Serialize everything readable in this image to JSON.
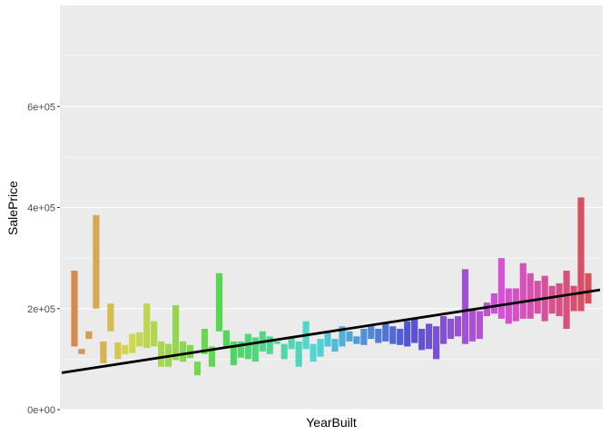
{
  "chart_data": {
    "type": "bar",
    "xlabel": "YearBuilt",
    "ylabel": "SalePrice",
    "ylim": [
      0,
      800000
    ],
    "y_ticks": [
      0,
      200000,
      400000,
      600000
    ],
    "y_tick_labels": [
      "0e+00",
      "2e+05",
      "4e+05",
      "6e+05"
    ],
    "grid": true,
    "legend": "none",
    "bar_style": "floating range (min-max SalePrice) per YearBuilt, colored by year on a hue scale",
    "trend_line": {
      "color": "#000000",
      "start": 73000,
      "end": 237000
    },
    "series": [
      {
        "lo": 125000,
        "hi": 275000
      },
      {
        "lo": 110000,
        "hi": 120000
      },
      {
        "lo": 140000,
        "hi": 155000
      },
      {
        "lo": 200000,
        "hi": 385000
      },
      {
        "lo": 92000,
        "hi": 135000
      },
      {
        "lo": 155000,
        "hi": 210000
      },
      {
        "lo": 100000,
        "hi": 133000
      },
      {
        "lo": 110000,
        "hi": 128000
      },
      {
        "lo": 112000,
        "hi": 150000
      },
      {
        "lo": 125000,
        "hi": 153000
      },
      {
        "lo": 122000,
        "hi": 210000
      },
      {
        "lo": 125000,
        "hi": 175000
      },
      {
        "lo": 85000,
        "hi": 135000
      },
      {
        "lo": 85000,
        "hi": 130000
      },
      {
        "lo": 98000,
        "hi": 207000
      },
      {
        "lo": 95000,
        "hi": 135000
      },
      {
        "lo": 102000,
        "hi": 128000
      },
      {
        "lo": 68000,
        "hi": 95000
      },
      {
        "lo": 110000,
        "hi": 160000
      },
      {
        "lo": 85000,
        "hi": 125000
      },
      {
        "lo": 155000,
        "hi": 270000
      },
      {
        "lo": 125000,
        "hi": 157000
      },
      {
        "lo": 88000,
        "hi": 135000
      },
      {
        "lo": 103000,
        "hi": 135000
      },
      {
        "lo": 100000,
        "hi": 150000
      },
      {
        "lo": 95000,
        "hi": 143000
      },
      {
        "lo": 115000,
        "hi": 155000
      },
      {
        "lo": 110000,
        "hi": 145000
      },
      {
        "lo": 130000,
        "hi": 135000
      },
      {
        "lo": 100000,
        "hi": 130000
      },
      {
        "lo": 120000,
        "hi": 145000
      },
      {
        "lo": 85000,
        "hi": 135000
      },
      {
        "lo": 120000,
        "hi": 175000
      },
      {
        "lo": 95000,
        "hi": 130000
      },
      {
        "lo": 105000,
        "hi": 140000
      },
      {
        "lo": 125000,
        "hi": 155000
      },
      {
        "lo": 115000,
        "hi": 140000
      },
      {
        "lo": 125000,
        "hi": 165000
      },
      {
        "lo": 135000,
        "hi": 155000
      },
      {
        "lo": 130000,
        "hi": 145000
      },
      {
        "lo": 128000,
        "hi": 160000
      },
      {
        "lo": 140000,
        "hi": 165000
      },
      {
        "lo": 132000,
        "hi": 160000
      },
      {
        "lo": 135000,
        "hi": 170000
      },
      {
        "lo": 130000,
        "hi": 165000
      },
      {
        "lo": 128000,
        "hi": 160000
      },
      {
        "lo": 125000,
        "hi": 175000
      },
      {
        "lo": 132000,
        "hi": 180000
      },
      {
        "lo": 118000,
        "hi": 160000
      },
      {
        "lo": 120000,
        "hi": 170000
      },
      {
        "lo": 100000,
        "hi": 165000
      },
      {
        "lo": 130000,
        "hi": 185000
      },
      {
        "lo": 140000,
        "hi": 180000
      },
      {
        "lo": 145000,
        "hi": 185000
      },
      {
        "lo": 130000,
        "hi": 278000
      },
      {
        "lo": 135000,
        "hi": 200000
      },
      {
        "lo": 140000,
        "hi": 195000
      },
      {
        "lo": 185000,
        "hi": 212000
      },
      {
        "lo": 190000,
        "hi": 230000
      },
      {
        "lo": 180000,
        "hi": 300000
      },
      {
        "lo": 170000,
        "hi": 240000
      },
      {
        "lo": 175000,
        "hi": 240000
      },
      {
        "lo": 180000,
        "hi": 290000
      },
      {
        "lo": 180000,
        "hi": 270000
      },
      {
        "lo": 190000,
        "hi": 255000
      },
      {
        "lo": 175000,
        "hi": 265000
      },
      {
        "lo": 190000,
        "hi": 245000
      },
      {
        "lo": 185000,
        "hi": 250000
      },
      {
        "lo": 160000,
        "hi": 275000
      },
      {
        "lo": 195000,
        "hi": 245000
      },
      {
        "lo": 195000,
        "hi": 420000
      },
      {
        "lo": 210000,
        "hi": 270000
      }
    ]
  }
}
